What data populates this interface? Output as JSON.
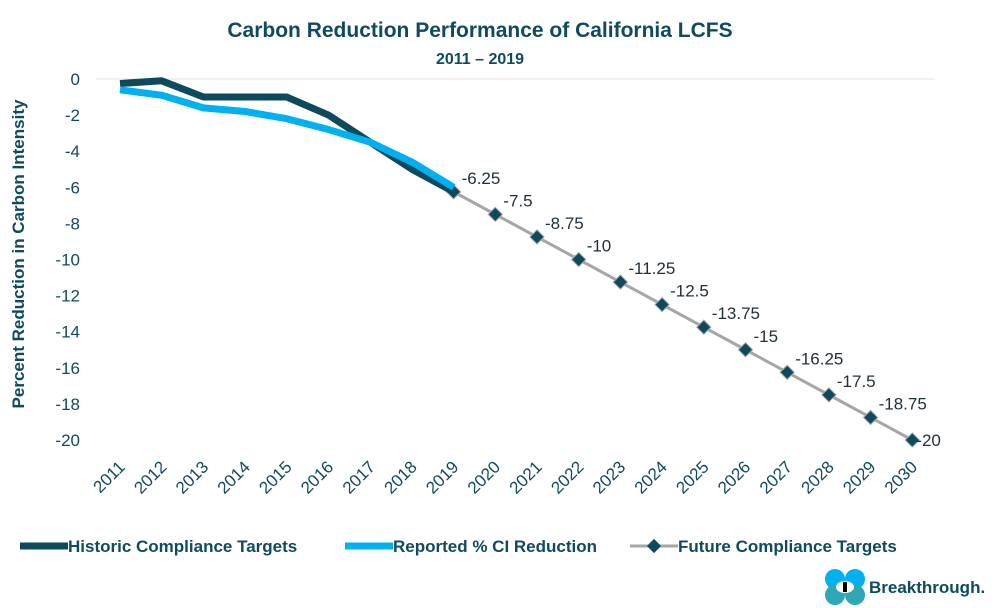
{
  "chart_data": {
    "type": "line",
    "title": "Carbon Reduction Performance of California LCFS",
    "subtitle": "2011 – 2019",
    "xlabel": "",
    "ylabel": "Percent Reduction in Carbon Intensity",
    "ylim": [
      -20,
      0
    ],
    "yticks": [
      0,
      -2,
      -4,
      -6,
      -8,
      -10,
      -12,
      -14,
      -16,
      -18,
      -20
    ],
    "categories": [
      "2011",
      "2012",
      "2013",
      "2014",
      "2015",
      "2016",
      "2017",
      "2018",
      "2019",
      "2020",
      "2021",
      "2022",
      "2023",
      "2024",
      "2025",
      "2026",
      "2027",
      "2028",
      "2029",
      "2030"
    ],
    "grid": false,
    "legend": "bottom",
    "series": [
      {
        "name": "Historic Compliance Targets",
        "color": "#0d4a5e",
        "x": [
          "2011",
          "2012",
          "2013",
          "2014",
          "2015",
          "2016",
          "2017",
          "2018",
          "2019"
        ],
        "values": [
          -0.25,
          -0.1,
          -1,
          -1,
          -1,
          -2,
          -3.5,
          -5,
          -6.25
        ]
      },
      {
        "name": "Reported % CI Reduction",
        "color": "#00b0f0",
        "x": [
          "2011",
          "2012",
          "2013",
          "2014",
          "2015",
          "2016",
          "2017",
          "2018",
          "2019"
        ],
        "values": [
          -0.6,
          -0.9,
          -1.6,
          -1.8,
          -2.2,
          -2.8,
          -3.5,
          -4.6,
          -6.0
        ]
      },
      {
        "name": "Future Compliance Targets",
        "color": "#a6a6a6",
        "marker_color": "#0d4a5e",
        "x": [
          "2019",
          "2020",
          "2021",
          "2022",
          "2023",
          "2024",
          "2025",
          "2026",
          "2027",
          "2028",
          "2029",
          "2030"
        ],
        "values": [
          -6.25,
          -7.5,
          -8.75,
          -10,
          -11.25,
          -12.5,
          -13.75,
          -15,
          -16.25,
          -17.5,
          -18.75,
          -20
        ],
        "labels": [
          "-6.25",
          "-7.5",
          "-8.75",
          "-10",
          "-11.25",
          "-12.5",
          "-13.75",
          "-15",
          "-16.25",
          "-17.5",
          "-18.75",
          "-20"
        ]
      }
    ]
  },
  "logo": {
    "text": "Breakthrough."
  }
}
